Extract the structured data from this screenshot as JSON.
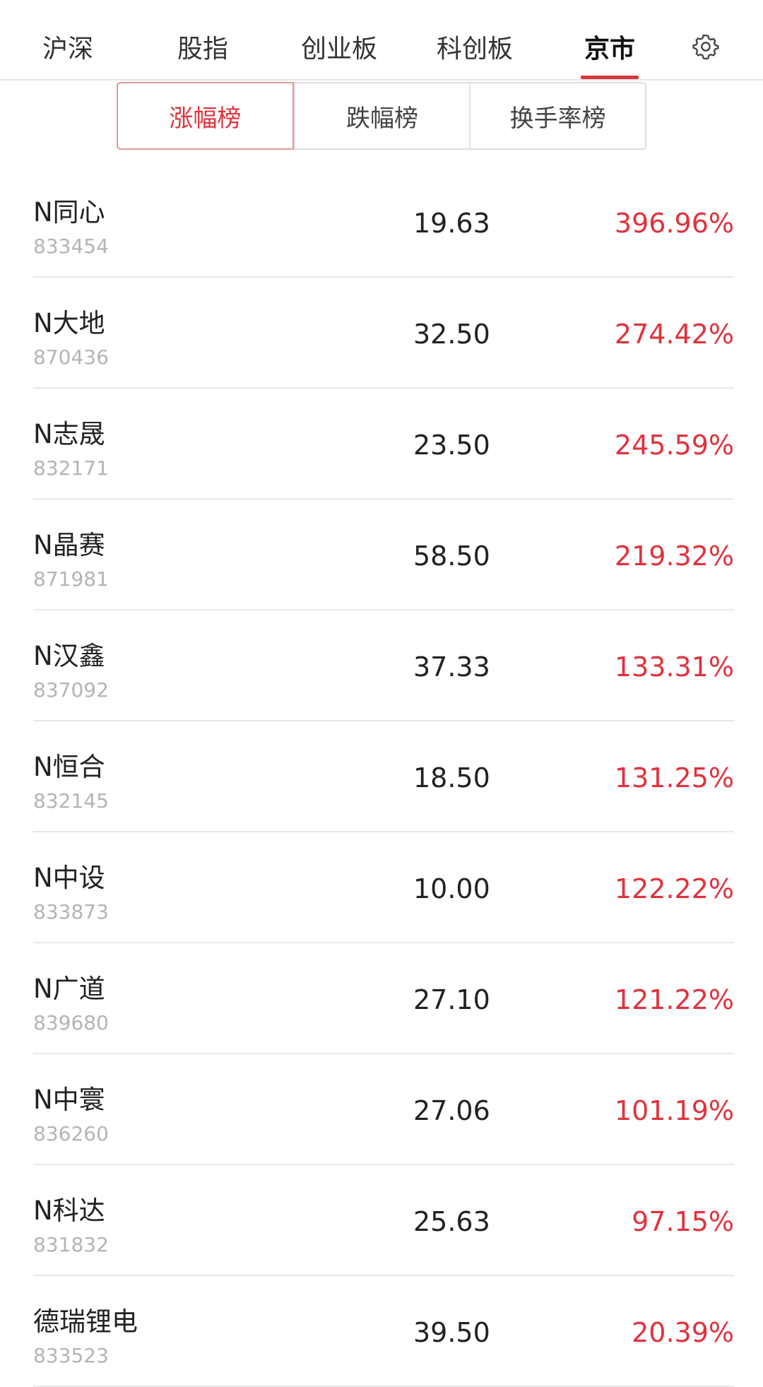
{
  "top_tabs": [
    {
      "label": "沪深",
      "active": false
    },
    {
      "label": "股指",
      "active": false
    },
    {
      "label": "创业板",
      "active": false
    },
    {
      "label": "科创板",
      "active": false
    },
    {
      "label": "京市",
      "active": true
    }
  ],
  "settings_icon": "gear-icon",
  "segments": [
    {
      "label": "涨幅榜",
      "active": true
    },
    {
      "label": "跌幅榜",
      "active": false
    },
    {
      "label": "换手率榜",
      "active": false
    }
  ],
  "colors": {
    "accent": "#e0323c",
    "up": "#e0323c",
    "code_gray": "#b4b4b4"
  },
  "stocks": [
    {
      "name": "N同心",
      "code": "833454",
      "price": "19.63",
      "change": "396.96%"
    },
    {
      "name": "N大地",
      "code": "870436",
      "price": "32.50",
      "change": "274.42%"
    },
    {
      "name": "N志晟",
      "code": "832171",
      "price": "23.50",
      "change": "245.59%"
    },
    {
      "name": "N晶赛",
      "code": "871981",
      "price": "58.50",
      "change": "219.32%"
    },
    {
      "name": "N汉鑫",
      "code": "837092",
      "price": "37.33",
      "change": "133.31%"
    },
    {
      "name": "N恒合",
      "code": "832145",
      "price": "18.50",
      "change": "131.25%"
    },
    {
      "name": "N中设",
      "code": "833873",
      "price": "10.00",
      "change": "122.22%"
    },
    {
      "name": "N广道",
      "code": "839680",
      "price": "27.10",
      "change": "121.22%"
    },
    {
      "name": "N中寰",
      "code": "836260",
      "price": "27.06",
      "change": "101.19%"
    },
    {
      "name": "N科达",
      "code": "831832",
      "price": "25.63",
      "change": "97.15%"
    },
    {
      "name": "德瑞锂电",
      "code": "833523",
      "price": "39.50",
      "change": "20.39%"
    }
  ]
}
